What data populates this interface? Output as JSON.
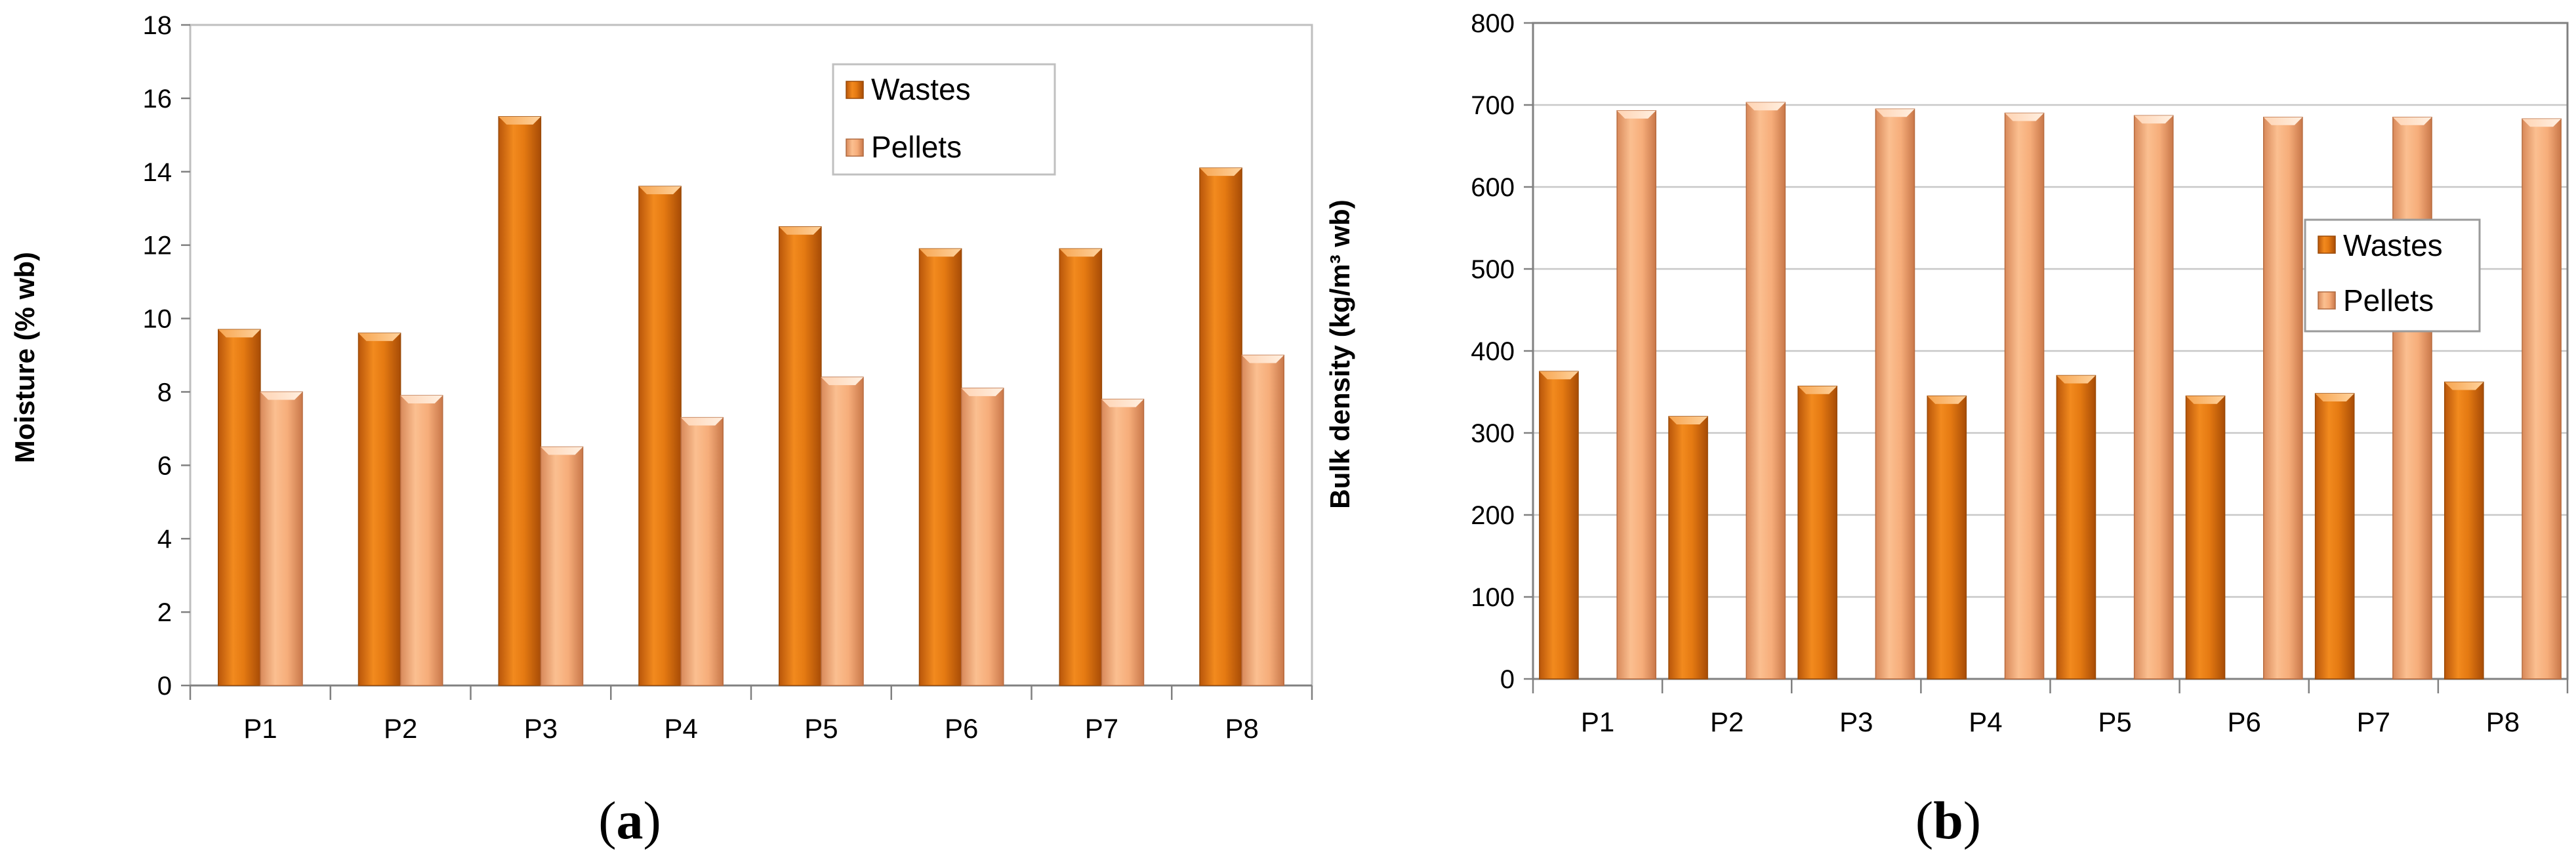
{
  "colors": {
    "wastes": "#e8780f",
    "pellets": "#f7b07c",
    "gridline": "#bfbfbf",
    "axis": "#808080"
  },
  "chart_data": [
    {
      "type": "bar",
      "panel_label": "a",
      "categories": [
        "P1",
        "P2",
        "P3",
        "P4",
        "P5",
        "P6",
        "P7",
        "P8"
      ],
      "series": [
        {
          "name": "Wastes",
          "values": [
            9.7,
            9.6,
            15.5,
            13.6,
            12.5,
            11.9,
            11.9,
            14.1
          ]
        },
        {
          "name": "Pellets",
          "values": [
            8.0,
            7.9,
            6.5,
            7.3,
            8.4,
            8.1,
            7.8,
            9.0
          ]
        }
      ],
      "ylabel": "Moisture (% wb)",
      "ylim": [
        0,
        18
      ],
      "yticks": [
        "0",
        "2",
        "4",
        "6",
        "8",
        "10",
        "12",
        "14",
        "16",
        "18"
      ],
      "legend_position": "top-right",
      "grid": false
    },
    {
      "type": "bar",
      "panel_label": "b",
      "categories": [
        "P1",
        "P2",
        "P3",
        "P4",
        "P5",
        "P6",
        "P7",
        "P8"
      ],
      "series": [
        {
          "name": "Wastes",
          "values": [
            375,
            320,
            357,
            345,
            370,
            345,
            348,
            362
          ]
        },
        {
          "name": "Pellets",
          "values": [
            693,
            703,
            695,
            690,
            687,
            685,
            685,
            683
          ]
        }
      ],
      "ylabel": "Bulk density (kg/m³ wb)",
      "ylim": [
        0,
        800
      ],
      "yticks": [
        "0",
        "100",
        "200",
        "300",
        "400",
        "500",
        "600",
        "700",
        "800"
      ],
      "legend_position": "right",
      "grid": true
    }
  ]
}
